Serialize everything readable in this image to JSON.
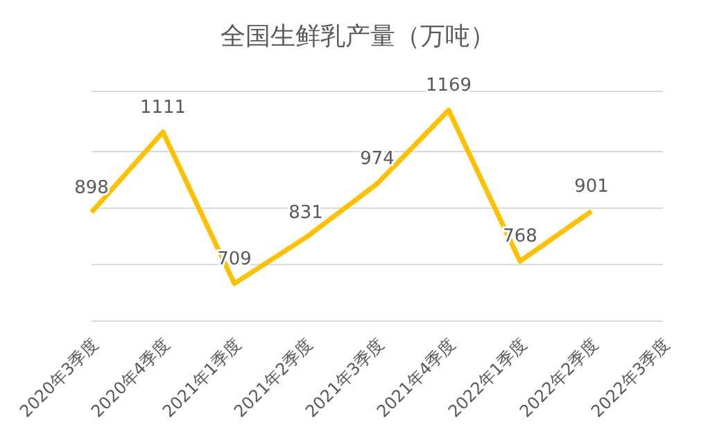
{
  "chart_data": {
    "type": "line",
    "title": "全国生鲜乳产量（万吨）",
    "categories": [
      "2020年3季度",
      "2020年4季度",
      "2021年1季度",
      "2021年2季度",
      "2021年3季度",
      "2021年4季度",
      "2022年1季度",
      "2022年2季度",
      "2022年3季度"
    ],
    "series": [
      {
        "color": "#ffc000",
        "values": [
          898,
          1111,
          709,
          831,
          974,
          1169,
          768,
          901,
          null
        ],
        "value_labels": [
          "898",
          "1111",
          "709",
          "831",
          "974",
          "1169",
          "768",
          "901",
          null
        ]
      }
    ],
    "tick_labels": "x",
    "grid": "y",
    "marker": "none",
    "line_style": "solid"
  }
}
